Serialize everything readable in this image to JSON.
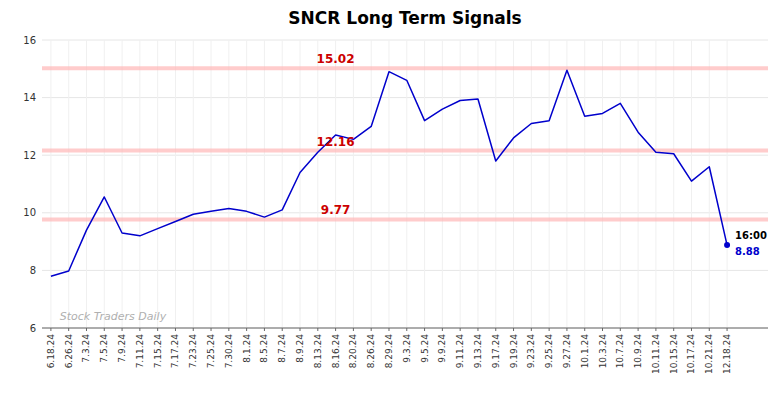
{
  "chart_data": {
    "type": "line",
    "title": "SNCR Long Term Signals",
    "categories": [
      "6.18.24",
      "6.26.24",
      "7.3.24",
      "7.5.24",
      "7.9.24",
      "7.11.24",
      "7.15.24",
      "7.17.24",
      "7.23.24",
      "7.25.24",
      "7.30.24",
      "8.1.24",
      "8.5.24",
      "8.7.24",
      "8.9.24",
      "8.13.24",
      "8.16.24",
      "8.20.24",
      "8.26.24",
      "8.29.24",
      "9.3.24",
      "9.5.24",
      "9.9.24",
      "9.11.24",
      "9.13.24",
      "9.17.24",
      "9.19.24",
      "9.23.24",
      "9.25.24",
      "9.27.24",
      "10.1.24",
      "10.3.24",
      "10.7.24",
      "10.9.24",
      "10.11.24",
      "10.15.24",
      "10.17.24",
      "10.21.24",
      "12.18.24"
    ],
    "values": [
      7.8,
      7.98,
      9.4,
      10.55,
      9.3,
      9.2,
      9.45,
      9.7,
      9.95,
      10.05,
      10.15,
      10.05,
      9.85,
      10.1,
      11.4,
      12.1,
      12.7,
      12.55,
      13.0,
      14.9,
      14.6,
      13.2,
      13.6,
      13.9,
      13.95,
      11.8,
      12.6,
      13.1,
      13.2,
      14.95,
      13.35,
      13.45,
      13.8,
      12.8,
      12.1,
      12.05,
      11.1,
      11.6,
      8.88
    ],
    "color": "#0000cc",
    "reference_lines": [
      {
        "value": 15.02,
        "label": "15.02",
        "color": "#ffb6b6"
      },
      {
        "value": 12.16,
        "label": "12.16",
        "color": "#ffb6b6"
      },
      {
        "value": 9.77,
        "label": "9.77",
        "color": "#ffb6b6"
      }
    ],
    "end_labels": [
      "16:00",
      "8.88"
    ],
    "watermark": "Stock Traders Daily",
    "ylim": [
      6,
      16
    ],
    "yticks": [
      6,
      8,
      10,
      12,
      14,
      16
    ],
    "grid": true
  }
}
